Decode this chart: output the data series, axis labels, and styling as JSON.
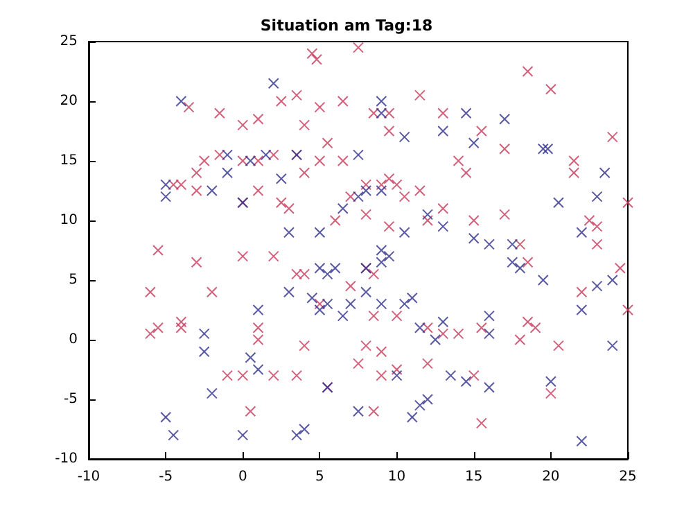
{
  "chart_data": {
    "type": "scatter",
    "title": "Situation am Tag:18",
    "xlim": [
      -10,
      25
    ],
    "xticks": [
      -10,
      -5,
      0,
      5,
      10,
      15,
      20,
      25
    ],
    "ylim": [
      -10,
      25
    ],
    "yticks": [
      -10,
      -5,
      0,
      5,
      10,
      15,
      20,
      25
    ],
    "grid": false,
    "marker": "cross",
    "series": [
      {
        "color": "#c8385a",
        "x": [
          4.5,
          4.8,
          7.5,
          18.5,
          -3.5,
          2.5,
          3.5,
          5,
          6.5,
          8.5,
          9.5,
          11.5,
          13,
          20,
          -1.5,
          1,
          0,
          4,
          5.5,
          9.5,
          15.5,
          -2.5,
          -1.5,
          -4.5,
          -3,
          -4,
          0,
          1,
          2,
          3.5,
          4,
          5,
          6.5,
          8,
          9,
          9.5,
          10,
          10.5,
          11.5,
          14,
          14.5,
          17,
          21.5,
          21.5,
          24,
          25,
          -3,
          0,
          1,
          2.5,
          3,
          6,
          7,
          8,
          9.5,
          12,
          13,
          15,
          17,
          18,
          18.5,
          22.5,
          23,
          23,
          24.5,
          -5.5,
          -3,
          -2,
          0,
          2,
          3.5,
          4,
          7,
          8,
          8.5,
          8.5,
          10,
          12,
          13,
          14,
          15.5,
          18.5,
          18,
          19,
          20.5,
          -6,
          -5.5,
          -4,
          -4,
          1,
          1,
          4,
          5,
          8,
          9,
          12,
          15,
          15.5,
          20,
          22,
          25,
          -1,
          0,
          0.5,
          2,
          3.5,
          5.5,
          7.5,
          9,
          8.5,
          10,
          -6
        ],
        "values": [
          24,
          23.5,
          24.5,
          22.5,
          19.5,
          20,
          20.5,
          19.5,
          20,
          19,
          19,
          20.5,
          19,
          21,
          19,
          18.5,
          18,
          18,
          16.5,
          17.5,
          17.5,
          15,
          15.5,
          13,
          14,
          13,
          15,
          15,
          15.5,
          15.5,
          14,
          15,
          15,
          13,
          13,
          13.5,
          13,
          12,
          12.5,
          15,
          14,
          16,
          15,
          14,
          17,
          11.5,
          12.5,
          11.5,
          12.5,
          11.5,
          11,
          10,
          12,
          10.5,
          9.5,
          10,
          11,
          10,
          10.5,
          8,
          6.5,
          10,
          9.5,
          8,
          6,
          7.5,
          6.5,
          4,
          7,
          7,
          5.5,
          5.5,
          4.5,
          6,
          5.5,
          2,
          2,
          1,
          0.5,
          0.5,
          1,
          1.5,
          0,
          1,
          -0.5,
          0.5,
          1,
          1,
          1.5,
          1,
          0,
          -0.5,
          3,
          -0.5,
          -1,
          -2,
          -3,
          -7,
          -4.5,
          4,
          2.5,
          -3,
          -3,
          -6,
          -3,
          -3,
          -4,
          -2,
          -3,
          -6,
          -2.5,
          4
        ]
      },
      {
        "color": "#2e2e8c",
        "x": [
          -4,
          2,
          9,
          -5,
          -5,
          -2,
          -1,
          -1,
          0.5,
          1.5,
          3.5,
          7.5,
          9,
          10.5,
          13,
          14.5,
          17,
          15,
          19.5,
          19.8,
          23.5,
          22,
          20.5,
          23,
          2.5,
          5,
          6.5,
          7.5,
          8,
          9,
          12,
          10.5,
          13,
          15,
          16,
          17.5,
          18,
          17.5,
          19.5,
          24,
          0,
          3,
          5,
          6,
          5.5,
          9,
          9.5,
          9,
          8,
          3,
          4.5,
          5.5,
          5,
          6.5,
          7,
          8,
          9,
          10.5,
          11,
          11.5,
          12.5,
          13,
          16,
          16,
          23,
          24,
          -2.5,
          -2.5,
          -2,
          0.5,
          1,
          1,
          -5,
          -4.5,
          3.5,
          4,
          0,
          5.5,
          7.5,
          10,
          11,
          11.5,
          13.5,
          14.5,
          16,
          20,
          22,
          22,
          12
        ],
        "values": [
          20,
          21.5,
          20,
          12,
          13,
          12.5,
          15.5,
          14,
          15,
          15.5,
          15.5,
          15.5,
          19,
          17,
          17.5,
          19,
          18.5,
          16.5,
          16,
          16,
          14,
          9,
          11.5,
          12,
          13.5,
          9,
          11,
          12,
          12.5,
          12.5,
          10.5,
          9,
          9.5,
          8.5,
          8,
          8,
          6,
          6.5,
          5,
          5,
          11.5,
          9,
          6,
          6,
          5.5,
          7.5,
          7,
          6.5,
          6,
          4,
          3.5,
          3,
          2.5,
          2,
          3,
          4,
          3,
          3,
          3.5,
          1,
          0,
          1.5,
          0.5,
          2,
          4.5,
          -0.5,
          0.5,
          -1,
          -4.5,
          -1.5,
          2.5,
          -2.5,
          -6.5,
          -8,
          -8,
          -7.5,
          -8,
          -4,
          -6,
          -3,
          -6.5,
          -5.5,
          -3,
          -3.5,
          -4,
          -3.5,
          -8.5,
          2.5,
          -5
        ]
      }
    ]
  }
}
